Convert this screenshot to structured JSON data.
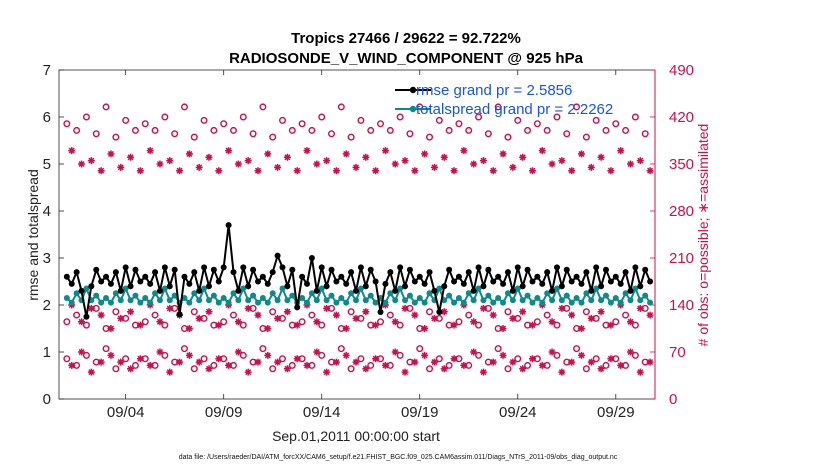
{
  "chart_data": {
    "type": "line",
    "title_line1": "Tropics 27466 / 29622 = 92.722%",
    "title_line2": "RADIOSONDE_V_WIND_COMPONENT @ 925 hPa",
    "ylabel": "rmse and totalspread",
    "ylabel_right": "# of obs: o=possible; ∗=assimilated",
    "xlabel": "Sep.01,2011 00:00:00 start",
    "footnote": "data file: /Users/raeder/DAI/ATM_forcXX/CAM6_setup/f.e21.FHIST_BGC.f09_025.CAM6assim.011/Diags_NTrS_2011-09/obs_diag_output.nc",
    "xlim": [
      0.6,
      31.0
    ],
    "ylim": [
      0,
      7
    ],
    "ylim_right": [
      0,
      490
    ],
    "x_ticks": [
      {
        "v": 4,
        "label": "09/04"
      },
      {
        "v": 9,
        "label": "09/09"
      },
      {
        "v": 14,
        "label": "09/14"
      },
      {
        "v": 19,
        "label": "09/19"
      },
      {
        "v": 24,
        "label": "09/24"
      },
      {
        "v": 29,
        "label": "09/29"
      }
    ],
    "y_ticks": [
      {
        "v": 0,
        "label": "0"
      },
      {
        "v": 1,
        "label": "1"
      },
      {
        "v": 2,
        "label": "2"
      },
      {
        "v": 3,
        "label": "3"
      },
      {
        "v": 4,
        "label": "4"
      },
      {
        "v": 5,
        "label": "5"
      },
      {
        "v": 6,
        "label": "6"
      },
      {
        "v": 7,
        "label": "7"
      }
    ],
    "y_ticks_right": [
      {
        "v": 0,
        "label": "0"
      },
      {
        "v": 70,
        "label": "70"
      },
      {
        "v": 140,
        "label": "140"
      },
      {
        "v": 210,
        "label": "210"
      },
      {
        "v": 280,
        "label": "280"
      },
      {
        "v": 350,
        "label": "350"
      },
      {
        "v": 420,
        "label": "420"
      },
      {
        "v": 490,
        "label": "490"
      }
    ],
    "colors": {
      "rmse": "#000000",
      "spread": "#0e8a8a",
      "obs": "#c8104f",
      "legend_text": "#1a56d8"
    },
    "series": [
      {
        "name": "rmse grand pr = 2.5856",
        "axis": "left",
        "pattern": [
          2.6,
          2.45,
          2.7,
          2.3,
          2.8,
          2.4,
          2.75,
          2.5
        ],
        "spikes": [
          {
            "x": 9.25,
            "y": 3.7
          },
          {
            "x": 9.0,
            "y": 2.8
          },
          {
            "x": 11.75,
            "y": 3.05
          },
          {
            "x": 13.5,
            "y": 3.0
          },
          {
            "x": 2.0,
            "y": 1.75
          },
          {
            "x": 6.75,
            "y": 1.8
          },
          {
            "x": 17.0,
            "y": 1.85
          },
          {
            "x": 20.0,
            "y": 1.85
          },
          {
            "x": 12.75,
            "y": 1.95
          }
        ]
      },
      {
        "name": "totalspread grand pr = 2.2262",
        "axis": "left",
        "pattern": [
          2.15,
          2.05,
          2.25,
          2.1,
          2.35,
          2.1,
          2.2,
          2.05
        ]
      },
      {
        "name": "obs_possible",
        "axis": "right",
        "marker": "o",
        "pattern": [
          [
            410,
            400,
            420,
            395,
            435,
            390,
            415,
            400
          ],
          [
            115,
            125,
            110,
            135,
            105,
            130,
            120,
            110
          ],
          [
            60,
            50,
            65,
            55,
            75,
            45,
            60,
            50
          ]
        ]
      },
      {
        "name": "obs_assimilated",
        "axis": "right",
        "marker": "*",
        "pattern": [
          [
            345,
            360,
            340,
            370,
            350,
            355,
            340,
            365
          ],
          [
            120,
            130,
            110,
            140,
            115,
            135,
            125,
            105
          ],
          [
            55,
            45,
            60,
            50,
            70,
            40,
            55,
            65
          ]
        ]
      }
    ],
    "legend": [
      {
        "label": "rmse grand pr = 2.5856",
        "series": "rmse"
      },
      {
        "label": "totalspread grand pr = 2.2262",
        "series": "spread"
      }
    ],
    "legend_position": "top-right"
  }
}
